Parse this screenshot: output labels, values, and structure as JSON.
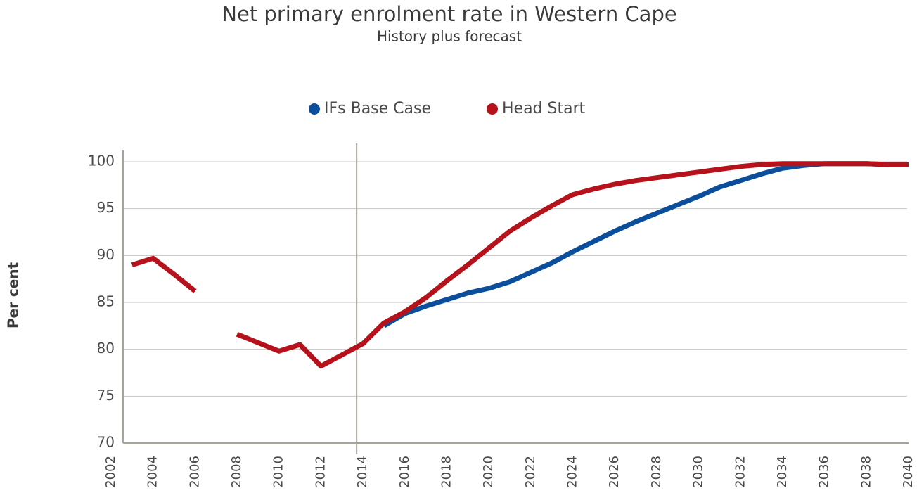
{
  "chart_data": {
    "type": "line",
    "title": "Net primary enrolment rate in Western Cape",
    "subtitle": "History plus forecast",
    "y_label": "Per cent",
    "x": [
      2003,
      2004,
      2005,
      2006,
      2007,
      2008,
      2009,
      2010,
      2011,
      2012,
      2013,
      2014,
      2015,
      2016,
      2017,
      2018,
      2019,
      2020,
      2021,
      2022,
      2023,
      2024,
      2025,
      2026,
      2027,
      2028,
      2029,
      2030,
      2031,
      2032,
      2033,
      2034,
      2035,
      2036,
      2037,
      2038,
      2039,
      2040
    ],
    "series": [
      {
        "name": "IFs Base Case",
        "color": "#0b4f9c",
        "values": [
          null,
          null,
          null,
          null,
          null,
          null,
          null,
          null,
          null,
          null,
          null,
          null,
          82.5,
          83.8,
          84.6,
          85.3,
          86.0,
          86.5,
          87.2,
          88.2,
          89.2,
          90.4,
          91.5,
          92.6,
          93.6,
          94.5,
          95.4,
          96.3,
          97.3,
          98.0,
          98.7,
          99.3,
          99.6,
          99.8,
          99.8,
          99.8,
          99.7,
          99.7
        ]
      },
      {
        "name": "Head Start",
        "color": "#b5121b",
        "values": [
          89.0,
          89.7,
          88.0,
          86.2,
          null,
          81.6,
          80.7,
          79.8,
          80.5,
          78.2,
          79.4,
          80.6,
          82.8,
          84.0,
          85.5,
          87.3,
          89.0,
          90.8,
          92.6,
          94.0,
          95.3,
          96.5,
          97.1,
          97.6,
          98.0,
          98.3,
          98.6,
          98.9,
          99.2,
          99.5,
          99.7,
          99.8,
          99.8,
          99.8,
          99.8,
          99.8,
          99.7,
          99.7
        ]
      }
    ],
    "xlim": [
      2002,
      2040
    ],
    "xticks": [
      2002,
      2004,
      2006,
      2008,
      2010,
      2012,
      2014,
      2016,
      2018,
      2020,
      2022,
      2024,
      2026,
      2028,
      2030,
      2032,
      2034,
      2036,
      2038,
      2040
    ],
    "ylim": [
      70,
      100
    ],
    "yticks": [
      70,
      75,
      80,
      85,
      90,
      95,
      100
    ],
    "grid": true,
    "forecast_divider": 2013.7,
    "legend": "top"
  }
}
